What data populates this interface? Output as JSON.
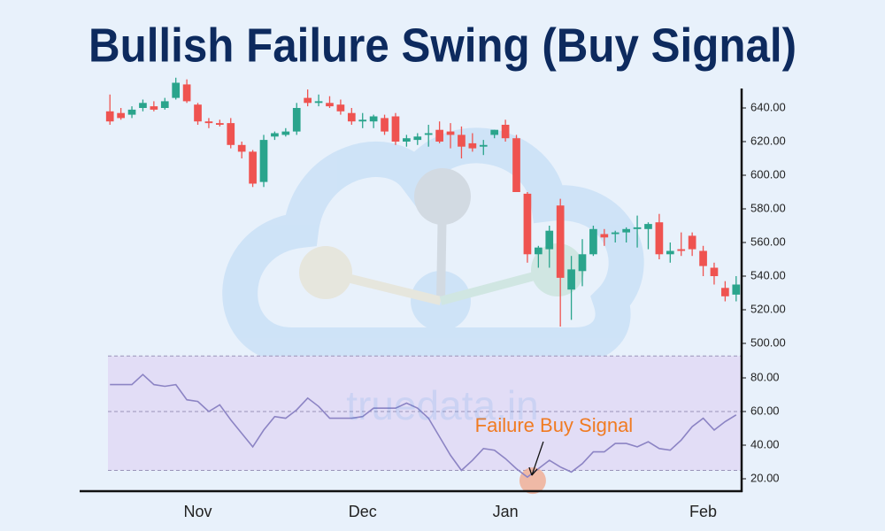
{
  "chart_data": [
    {
      "type": "candlestick",
      "title": "Bullish Failure Swing (Buy Signal)",
      "watermark": "truedata.in",
      "categories": [
        null,
        null,
        null,
        null,
        null,
        null,
        null,
        null,
        "Nov",
        null,
        null,
        null,
        null,
        null,
        null,
        null,
        null,
        null,
        null,
        null,
        null,
        null,
        null,
        "Dec",
        null,
        null,
        null,
        null,
        null,
        null,
        null,
        null,
        null,
        null,
        null,
        null,
        "Jan",
        null,
        null,
        null,
        null,
        null,
        null,
        null,
        null,
        null,
        null,
        null,
        null,
        null,
        null,
        null,
        null,
        null,
        "Feb",
        null,
        null,
        null
      ],
      "open": [
        638,
        637,
        636,
        640,
        641,
        640,
        646,
        654,
        642,
        632,
        631,
        631,
        618,
        614,
        596,
        623,
        624,
        626,
        646,
        643,
        643,
        642,
        637,
        632,
        632,
        634,
        635,
        620,
        621,
        624,
        627,
        626,
        624,
        619,
        617,
        624,
        630,
        622,
        589,
        553,
        556,
        582,
        532,
        543,
        553,
        565,
        565,
        566,
        568,
        568,
        572,
        553,
        556,
        564,
        555,
        545,
        533,
        529
      ],
      "high": [
        648,
        640,
        641,
        645,
        644,
        646,
        658,
        657,
        643,
        634,
        633,
        634,
        620,
        615,
        624,
        626,
        628,
        643,
        651,
        648,
        647,
        645,
        640,
        637,
        636,
        636,
        637,
        624,
        625,
        630,
        632,
        631,
        629,
        625,
        621,
        627,
        633,
        624,
        590,
        558,
        570,
        586,
        552,
        562,
        570,
        568,
        567,
        569,
        576,
        572,
        577,
        560,
        566,
        566,
        558,
        548,
        537,
        540
      ],
      "low": [
        630,
        633,
        634,
        638,
        638,
        639,
        645,
        643,
        630,
        628,
        629,
        616,
        610,
        593,
        593,
        621,
        623,
        624,
        641,
        641,
        640,
        636,
        630,
        628,
        628,
        624,
        618,
        617,
        618,
        617,
        619,
        616,
        610,
        614,
        612,
        622,
        620,
        590,
        548,
        545,
        545,
        510,
        514,
        534,
        552,
        558,
        560,
        560,
        557,
        556,
        550,
        548,
        552,
        552,
        540,
        535,
        525,
        525
      ],
      "close": [
        632,
        634,
        639,
        643,
        639,
        644,
        655,
        644,
        632,
        631,
        630,
        618,
        614,
        595,
        621,
        625,
        626,
        640,
        643,
        644,
        641,
        638,
        632,
        633,
        635,
        626,
        620,
        622,
        623,
        625,
        620,
        624,
        617,
        616,
        618,
        627,
        622,
        590,
        553,
        557,
        567,
        539,
        544,
        553,
        568,
        563,
        566,
        568,
        569,
        571,
        553,
        555,
        555,
        556,
        546,
        540,
        528,
        535
      ],
      "up_color": "#2aa48c",
      "down_color": "#ef5350",
      "ylim": [
        490,
        660
      ],
      "yticks": [
        {
          "value": 500,
          "label": "500.00"
        },
        {
          "value": 520,
          "label": "520.00"
        },
        {
          "value": 540,
          "label": "540.00"
        },
        {
          "value": 560,
          "label": "560.00"
        },
        {
          "value": 580,
          "label": "580.00"
        },
        {
          "value": 600,
          "label": "600.00"
        },
        {
          "value": 620,
          "label": "620.00"
        },
        {
          "value": 640,
          "label": "640.00"
        }
      ]
    },
    {
      "type": "line",
      "values": [
        76,
        76,
        76,
        82,
        76,
        75,
        76,
        67,
        66,
        60,
        64,
        55,
        47,
        39,
        49,
        57,
        56,
        61,
        68,
        63,
        56,
        56,
        56,
        57,
        62,
        62,
        62,
        65,
        62,
        56,
        45,
        34,
        25,
        31,
        38,
        37,
        32,
        26,
        21,
        26,
        31,
        27,
        24,
        29,
        36,
        36,
        41,
        41,
        39,
        42,
        38,
        37,
        43,
        51,
        56,
        49,
        54,
        58
      ],
      "color": "#8c84c4",
      "band_color": "#e2ddf6",
      "band": [
        25,
        93
      ],
      "levels": [
        25,
        60,
        93
      ],
      "ylim": [
        12,
        95
      ],
      "yticks": [
        {
          "value": 20,
          "label": "20.00"
        },
        {
          "value": 40,
          "label": "40.00"
        },
        {
          "value": 60,
          "label": "60.00"
        },
        {
          "value": 80,
          "label": "80.00"
        }
      ],
      "annotation": {
        "text": "Failure Buy Signal",
        "index": 38,
        "color": "#f07b22"
      }
    }
  ]
}
